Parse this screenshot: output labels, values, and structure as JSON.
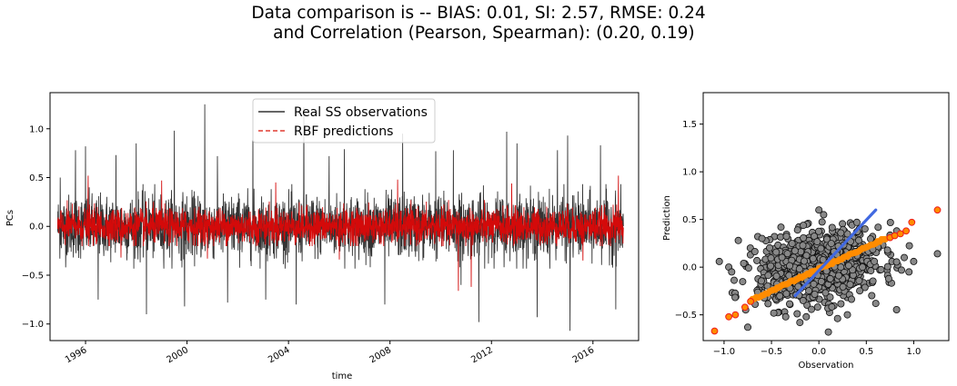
{
  "figure": {
    "title_line1": "Data comparison is -- BIAS: 0.01, SI: 2.57, RMSE: 0.24",
    "title_line2": "  and Correlation (Pearson, Spearman): (0.20, 0.19)"
  },
  "chart_data": [
    {
      "type": "line",
      "xlabel": "time",
      "ylabel": "PCs",
      "xlim": [
        1994.6,
        2017.8
      ],
      "ylim": [
        -1.17,
        1.37
      ],
      "x_ticks": [
        1996,
        2000,
        2004,
        2008,
        2012,
        2016
      ],
      "x_tick_labels": [
        "1996",
        "2000",
        "2004",
        "2008",
        "2012",
        "2016"
      ],
      "y_ticks": [
        -1.0,
        -0.5,
        0.0,
        0.5,
        1.0
      ],
      "y_tick_labels": [
        "−1.0",
        "−0.5",
        "0.0",
        "0.5",
        "1.0"
      ],
      "legend": {
        "position": "top-center",
        "entries": [
          {
            "label": "Real SS observations",
            "color": "#333333",
            "style": "solid"
          },
          {
            "label": "RBF predictions",
            "color": "#e03c31",
            "style": "dashed"
          }
        ]
      },
      "series": [
        {
          "name": "Real SS observations",
          "color": "#333333",
          "x_range": [
            1994.9,
            2017.2
          ],
          "typical_low": -0.32,
          "typical_high": 0.32,
          "spikes": [
            [
              1995.0,
              0.5
            ],
            [
              1995.6,
              0.78
            ],
            [
              1996.0,
              0.82
            ],
            [
              1996.5,
              -0.75
            ],
            [
              1997.2,
              0.73
            ],
            [
              1998.0,
              0.85
            ],
            [
              1998.4,
              -0.9
            ],
            [
              1999.5,
              0.98
            ],
            [
              1999.9,
              -0.82
            ],
            [
              2000.7,
              1.25
            ],
            [
              2001.2,
              0.72
            ],
            [
              2001.6,
              -0.78
            ],
            [
              2002.6,
              0.98
            ],
            [
              2003.1,
              -0.75
            ],
            [
              2004.6,
              1.22
            ],
            [
              2004.3,
              -0.8
            ],
            [
              2005.6,
              0.72
            ],
            [
              2006.2,
              0.79
            ],
            [
              2007.8,
              -0.8
            ],
            [
              2008.5,
              0.95
            ],
            [
              2009.8,
              0.77
            ],
            [
              2010.5,
              0.78
            ],
            [
              2010.8,
              -0.6
            ],
            [
              2011.5,
              -0.98
            ],
            [
              2012.6,
              0.97
            ],
            [
              2013.0,
              0.85
            ],
            [
              2013.8,
              -0.93
            ],
            [
              2014.6,
              0.78
            ],
            [
              2015.0,
              0.93
            ],
            [
              2015.1,
              -1.07
            ],
            [
              2016.3,
              0.83
            ],
            [
              2016.9,
              -0.85
            ]
          ]
        },
        {
          "name": "RBF predictions",
          "color": "#d40a0a",
          "x_range": [
            1994.9,
            2017.2
          ],
          "typical_low": -0.15,
          "typical_high": 0.2,
          "spikes": [
            [
              1996.1,
              0.52
            ],
            [
              1997.4,
              -0.32
            ],
            [
              1999.0,
              0.47
            ],
            [
              2000.8,
              -0.33
            ],
            [
              2003.5,
              0.45
            ],
            [
              2006.0,
              -0.34
            ],
            [
              2008.3,
              0.48
            ],
            [
              2010.7,
              -0.66
            ],
            [
              2011.2,
              -0.62
            ],
            [
              2012.8,
              0.44
            ],
            [
              2015.6,
              -0.35
            ],
            [
              2017.0,
              0.52
            ]
          ]
        }
      ]
    },
    {
      "type": "scatter",
      "xlabel": "Observation",
      "ylabel": "Prediction",
      "xlim": [
        -1.22,
        1.37
      ],
      "ylim": [
        -0.77,
        1.83
      ],
      "x_ticks": [
        -1.0,
        -0.5,
        0.0,
        0.5,
        1.0
      ],
      "x_tick_labels": [
        "−1.0",
        "−0.5",
        "0.0",
        "0.5",
        "1.0"
      ],
      "y_ticks": [
        -0.5,
        0.0,
        0.5,
        1.0,
        1.5
      ],
      "y_tick_labels": [
        "−0.5",
        "0.0",
        "0.5",
        "1.0",
        "1.5"
      ],
      "cloud": {
        "color": "#888888",
        "edge": "#111111",
        "center": [
          0.0,
          0.0
        ],
        "spread": [
          0.32,
          0.18
        ],
        "outliers": [
          [
            -1.05,
            0.06
          ],
          [
            -0.95,
            0.0
          ],
          [
            -0.92,
            -0.05
          ],
          [
            -0.85,
            0.28
          ],
          [
            -0.75,
            -0.63
          ],
          [
            -0.6,
            0.3
          ],
          [
            -0.4,
            0.42
          ],
          [
            -0.35,
            -0.52
          ],
          [
            -0.2,
            -0.58
          ],
          [
            0.0,
            0.6
          ],
          [
            0.05,
            0.55
          ],
          [
            0.1,
            -0.68
          ],
          [
            0.4,
            0.47
          ],
          [
            0.82,
            0.38
          ],
          [
            0.9,
            0.1
          ],
          [
            0.95,
            -0.05
          ],
          [
            1.0,
            0.06
          ],
          [
            1.25,
            0.14
          ],
          [
            0.6,
            -0.38
          ],
          [
            0.3,
            -0.5
          ]
        ]
      },
      "qq_points": {
        "color": "#ff8c00",
        "edge": "#ee1c1c",
        "points": [
          [
            -1.1,
            -0.67
          ],
          [
            -0.95,
            -0.52
          ],
          [
            -0.88,
            -0.5
          ],
          [
            -0.78,
            -0.42
          ],
          [
            -0.72,
            -0.36
          ],
          [
            0.75,
            0.31
          ],
          [
            0.8,
            0.33
          ],
          [
            0.86,
            0.35
          ],
          [
            0.92,
            0.38
          ],
          [
            0.98,
            0.47
          ],
          [
            1.25,
            0.6
          ]
        ]
      },
      "fit_line": {
        "color": "#4169e1",
        "x": [
          -0.25,
          0.6
        ],
        "y": [
          -0.3,
          0.6
        ]
      }
    }
  ]
}
